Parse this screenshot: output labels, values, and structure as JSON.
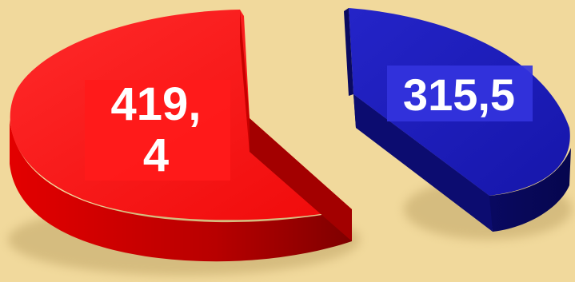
{
  "chart_data": {
    "type": "pie",
    "style": "3d-exploded",
    "slices": [
      {
        "label_line1": "419,",
        "label_line2": "4",
        "value": 419.4,
        "color": "#ff0f0f",
        "side_color": "#b60000"
      },
      {
        "label_line1": "315,5",
        "value": 315.5,
        "color": "#1a1ab8",
        "side_color": "#0a0a6a"
      }
    ],
    "background": "#f1d99c"
  }
}
